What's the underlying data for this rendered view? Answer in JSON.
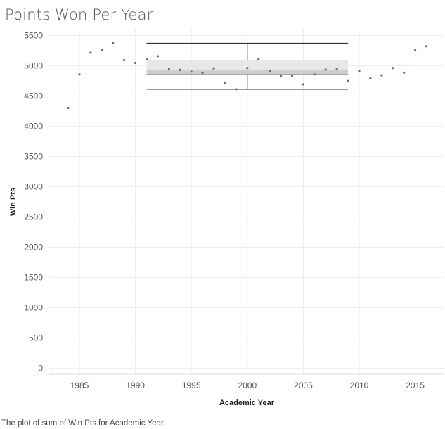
{
  "title": "Points Won Per Year",
  "caption": "The plot of sum of Win Pts for Academic Year.",
  "chart_data": {
    "type": "scatter",
    "title": "Points Won Per Year",
    "xlabel": "Academic Year",
    "ylabel": "Win Pts",
    "xlim": [
      1982.3,
      2017.6
    ],
    "ylim": [
      -100,
      5620
    ],
    "xticks": [
      1985,
      1990,
      1995,
      2000,
      2005,
      2010,
      2015
    ],
    "yticks": [
      0,
      500,
      1000,
      1500,
      2000,
      2500,
      3000,
      3500,
      4000,
      4500,
      5000,
      5500
    ],
    "grid": true,
    "point_color": "#4e6db8",
    "series": [
      {
        "x": [
          1984,
          1985,
          1986,
          1987,
          1988,
          1989,
          1990,
          1991,
          1992,
          1993,
          1994,
          1995,
          1996,
          1997,
          1998,
          1999,
          2000,
          2001,
          2002,
          2003,
          2004,
          2005,
          2006,
          2007,
          2008,
          2009,
          2010,
          2011,
          2012,
          2013,
          2014,
          2015,
          2016
        ],
        "y": [
          4300,
          4855,
          5215,
          5255,
          5370,
          5090,
          5045,
          5110,
          5155,
          4940,
          4930,
          4900,
          4880,
          4955,
          4710,
          4610,
          4960,
          5105,
          4910,
          4830,
          4835,
          4690,
          4855,
          4935,
          4940,
          4745,
          4910,
          4790,
          4840,
          4960,
          4885,
          5255,
          5320
        ]
      }
    ],
    "box_plot": {
      "x_start": 1991,
      "x_end": 2009,
      "x_center": 2000,
      "whisker_low": 4610,
      "q1": 4850,
      "median": 4935,
      "q3": 5090,
      "whisker_high": 5370,
      "upper_box_color": "#e4e4e4",
      "lower_box_color": "#c6c6c6",
      "line_color": "#333333"
    }
  }
}
